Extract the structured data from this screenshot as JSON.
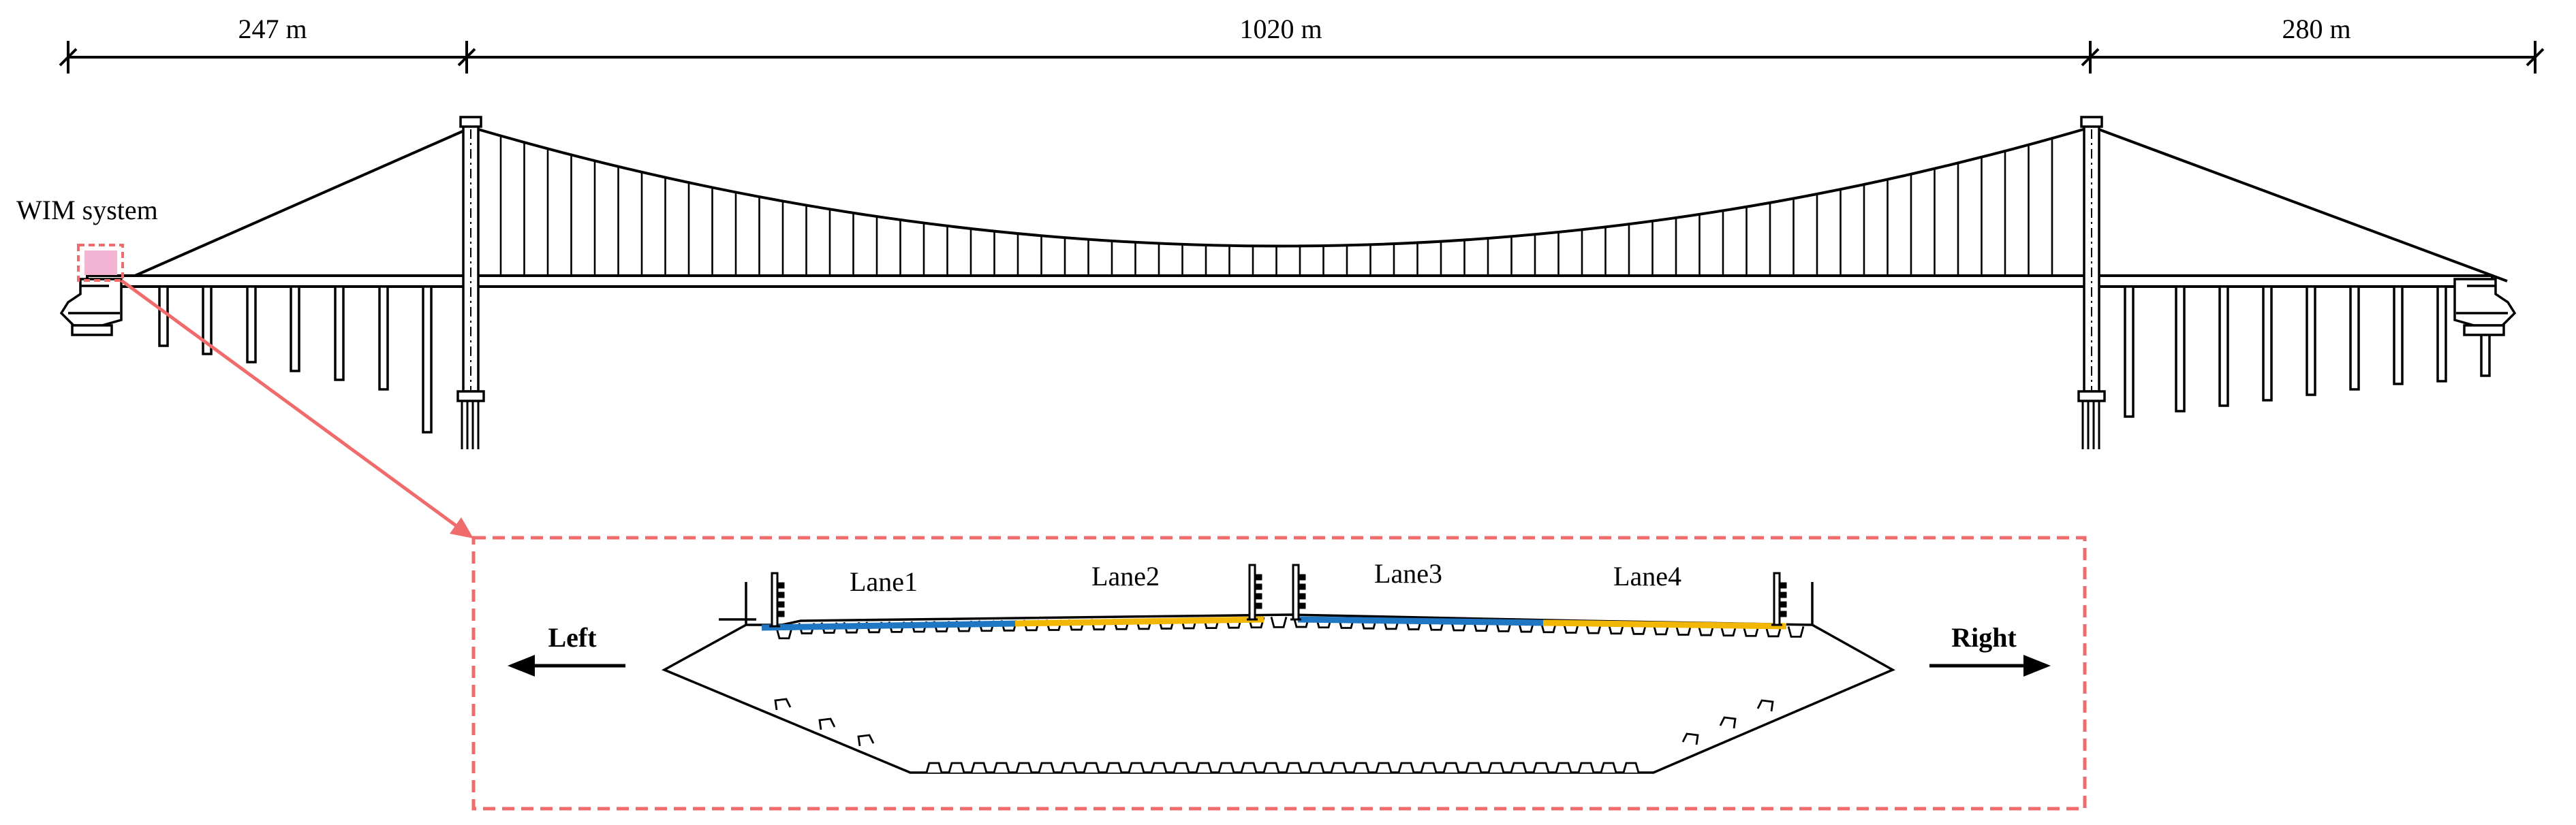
{
  "spans": [
    {
      "label": "247 m"
    },
    {
      "label": "1020 m"
    },
    {
      "label": "280 m"
    }
  ],
  "wim": {
    "label": "WIM system"
  },
  "cross_section": {
    "lanes": [
      {
        "label": "Lane1",
        "color": "#1f77c4"
      },
      {
        "label": "Lane2",
        "color": "#f2b705"
      },
      {
        "label": "Lane3",
        "color": "#1f77c4"
      },
      {
        "label": "Lane4",
        "color": "#f2b705"
      }
    ],
    "left_label": "Left",
    "right_label": "Right"
  },
  "colors": {
    "line": "#000000",
    "highlight": "#f06b6b",
    "wim_fill": "#f3b3d2"
  }
}
